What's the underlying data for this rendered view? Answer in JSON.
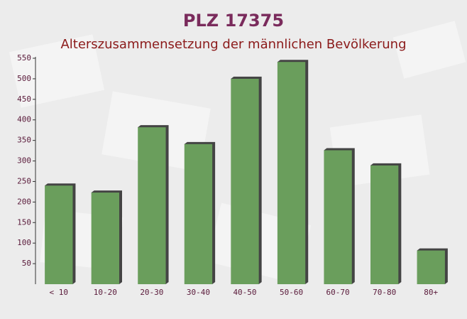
{
  "chart_data": {
    "type": "bar",
    "title": "PLZ 17375",
    "subtitle": "Alterszusammensetzung der männlichen Bevölkerung",
    "categories": [
      "< 10",
      "10-20",
      "20-30",
      "30-40",
      "40-50",
      "50-60",
      "60-70",
      "70-80",
      "80+"
    ],
    "values": [
      240,
      223,
      382,
      341,
      500,
      541,
      326,
      289,
      82
    ],
    "color": "#6a9e5c",
    "ylim": [
      0,
      550
    ],
    "yticks": [
      50,
      100,
      150,
      200,
      250,
      300,
      350,
      400,
      450,
      500,
      550
    ]
  }
}
